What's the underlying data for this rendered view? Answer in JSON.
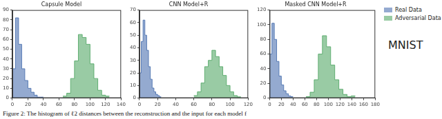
{
  "chart_data": [
    {
      "type": "histogram",
      "title": "Capsule Model",
      "series": [
        {
          "name": "Real Data",
          "color": "#4c72b0",
          "bins": [
            0,
            4,
            8,
            12,
            16,
            20,
            24,
            28,
            32,
            36,
            40
          ],
          "values": [
            30,
            82,
            55,
            30,
            18,
            10,
            6,
            3,
            1,
            1
          ]
        },
        {
          "name": "Adversarial Data",
          "color": "#55a868",
          "bins": [
            65,
            70,
            75,
            80,
            85,
            90,
            95,
            100,
            105,
            110,
            115,
            120,
            125
          ],
          "values": [
            2,
            5,
            20,
            38,
            65,
            62,
            55,
            35,
            20,
            8,
            3,
            2
          ]
        }
      ],
      "xlim": [
        0,
        140
      ],
      "xticks": [
        0,
        20,
        40,
        60,
        80,
        100,
        120,
        140
      ],
      "ylim": [
        0,
        90
      ],
      "yticks": [
        0,
        10,
        20,
        30,
        40,
        50,
        60,
        70,
        80,
        90
      ],
      "grid": false
    },
    {
      "type": "histogram",
      "title": "CNN Model+R",
      "series": [
        {
          "name": "Real Data",
          "color": "#4c72b0",
          "bins": [
            0,
            2,
            4,
            6,
            8,
            10,
            12,
            14,
            16,
            18,
            20,
            22,
            24
          ],
          "values": [
            20,
            45,
            62,
            50,
            38,
            25,
            15,
            8,
            5,
            3,
            2,
            1
          ]
        },
        {
          "name": "Adversarial Data",
          "color": "#55a868",
          "bins": [
            60,
            64,
            68,
            72,
            76,
            80,
            84,
            88,
            92,
            96,
            100,
            104,
            108,
            112
          ],
          "values": [
            2,
            5,
            12,
            25,
            30,
            38,
            33,
            25,
            18,
            10,
            5,
            2,
            1
          ]
        }
      ],
      "xlim": [
        0,
        120
      ],
      "xticks": [
        0,
        20,
        40,
        60,
        80,
        100,
        120
      ],
      "ylim": [
        0,
        70
      ],
      "yticks": [
        0,
        10,
        20,
        30,
        40,
        50,
        60,
        70
      ],
      "grid": false
    },
    {
      "type": "histogram",
      "title": "Masked CNN Model+R",
      "series": [
        {
          "name": "Real Data",
          "color": "#4c72b0",
          "bins": [
            0,
            4,
            8,
            12,
            16,
            20,
            24,
            28,
            32,
            36,
            40
          ],
          "values": [
            60,
            102,
            80,
            50,
            30,
            18,
            10,
            6,
            3,
            2
          ]
        },
        {
          "name": "Adversarial Data",
          "color": "#55a868",
          "bins": [
            62,
            69,
            76,
            83,
            90,
            97,
            104,
            111,
            118,
            125,
            132,
            139,
            146
          ],
          "values": [
            2,
            8,
            25,
            60,
            85,
            70,
            45,
            25,
            12,
            5,
            2,
            3
          ]
        }
      ],
      "xlim": [
        0,
        180
      ],
      "xticks": [
        0,
        20,
        40,
        60,
        80,
        100,
        120,
        140,
        160,
        180
      ],
      "ylim": [
        0,
        120
      ],
      "yticks": [
        0,
        20,
        40,
        60,
        80,
        100,
        120
      ],
      "grid": false,
      "legend": "right"
    }
  ],
  "row_label": "MNIST",
  "caption": "Figure 2: The histogram of ℓ2 distances between the reconstruction and the input for each model f"
}
